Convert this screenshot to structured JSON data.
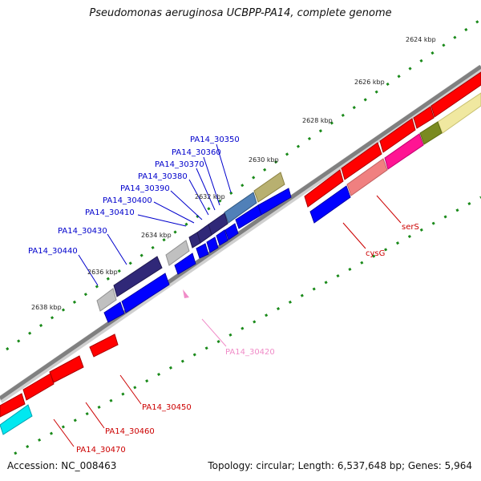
{
  "title": "Pseudomonas aeruginosa UCBPP-PA14, complete genome",
  "footer": {
    "accession": "Accession: NC_008463",
    "summary": "Topology: circular; Length: 6,537,648 bp; Genes: 5,964"
  },
  "colors": {
    "backbone": "#808080",
    "forward_strand": "#0000ff",
    "reverse_strand": "#ff0000",
    "tick": "#1a8a1a",
    "label_forward": "#0000cc",
    "label_reverse": "#cc0000",
    "label_pseudo": "#f08cc8"
  },
  "scale_labels": [
    "2624 kbp",
    "2626 kbp",
    "2628 kbp",
    "2630 kbp",
    "2632 kbp",
    "2634 kbp",
    "2636 kbp",
    "2638 kbp"
  ],
  "gene_labels": [
    {
      "text": "PA14_30350",
      "color": "#0000cc"
    },
    {
      "text": "PA14_30360",
      "color": "#0000cc"
    },
    {
      "text": "PA14_30370",
      "color": "#0000cc"
    },
    {
      "text": "PA14_30380",
      "color": "#0000cc"
    },
    {
      "text": "PA14_30390",
      "color": "#0000cc"
    },
    {
      "text": "PA14_30400",
      "color": "#0000cc"
    },
    {
      "text": "PA14_30410",
      "color": "#0000cc"
    },
    {
      "text": "PA14_30430",
      "color": "#0000cc"
    },
    {
      "text": "PA14_30440",
      "color": "#0000cc"
    },
    {
      "text": "PA14_30420",
      "color": "#f08cc8"
    },
    {
      "text": "PA14_30450",
      "color": "#cc0000"
    },
    {
      "text": "PA14_30460",
      "color": "#cc0000"
    },
    {
      "text": "PA14_30470",
      "color": "#cc0000"
    },
    {
      "text": "cysG",
      "color": "#cc0000"
    },
    {
      "text": "serS",
      "color": "#cc0000"
    }
  ]
}
